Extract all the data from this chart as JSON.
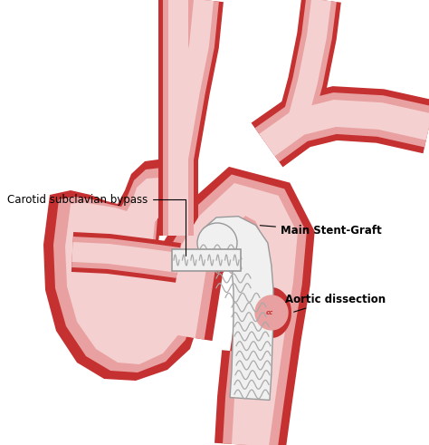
{
  "background_color": "#ffffff",
  "outer_vessel_color": "#c53030",
  "mid_vessel_color": "#e8a0a0",
  "inner_vessel_color": "#f5d0d0",
  "stent_color": "#f0f0f0",
  "stent_border_color": "#999999",
  "stent_wave_color": "#aaaaaa",
  "diss_color": "#c53030",
  "label_carotid": "Carotid subclavian bypass",
  "label_stent": "Main Stent-Graft",
  "label_dissection": "Aortic dissection",
  "label_fontsize": 8.5,
  "fig_width": 4.74,
  "fig_height": 4.91
}
